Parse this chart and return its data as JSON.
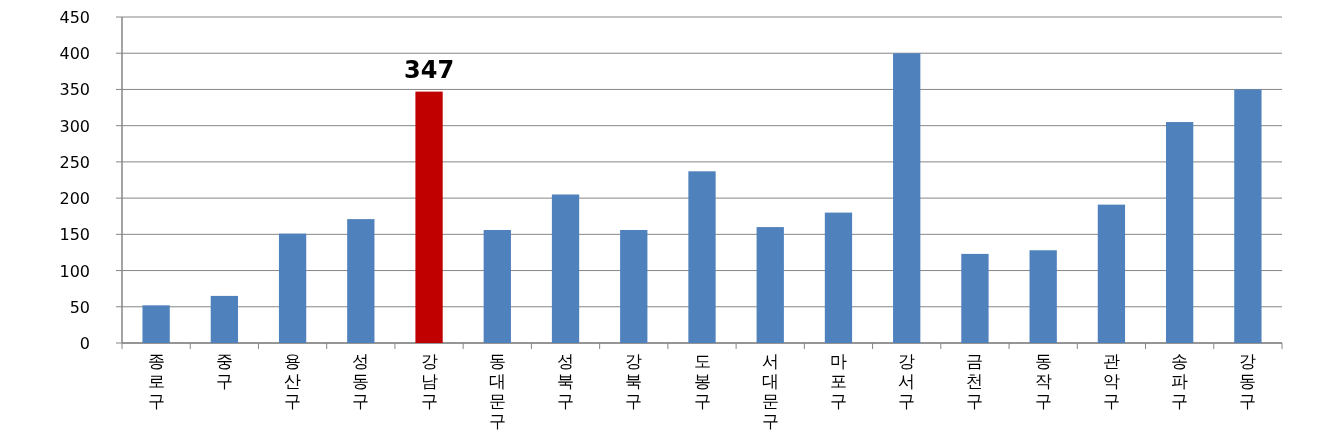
{
  "chart_data": {
    "type": "bar",
    "categories": [
      "종로구",
      "중구",
      "용산구",
      "성동구",
      "강남구",
      "동대문구",
      "성북구",
      "강북구",
      "도봉구",
      "서대문구",
      "마포구",
      "강서구",
      "금천구",
      "동작구",
      "관악구",
      "송파구",
      "강동구"
    ],
    "values": [
      52,
      65,
      151,
      171,
      347,
      156,
      205,
      156,
      237,
      160,
      180,
      400,
      123,
      128,
      191,
      305,
      350
    ],
    "colors": [
      "#4f81bd",
      "#4f81bd",
      "#4f81bd",
      "#4f81bd",
      "#c00000",
      "#4f81bd",
      "#4f81bd",
      "#4f81bd",
      "#4f81bd",
      "#4f81bd",
      "#4f81bd",
      "#4f81bd",
      "#4f81bd",
      "#4f81bd",
      "#4f81bd",
      "#4f81bd",
      "#4f81bd"
    ],
    "value_labels": [
      null,
      null,
      null,
      null,
      "347",
      null,
      null,
      null,
      null,
      null,
      null,
      null,
      null,
      null,
      null,
      null,
      null
    ],
    "ylim": [
      0,
      450
    ],
    "yticks": [
      0,
      50,
      100,
      150,
      200,
      250,
      300,
      350,
      400,
      450
    ],
    "grid": "y"
  }
}
